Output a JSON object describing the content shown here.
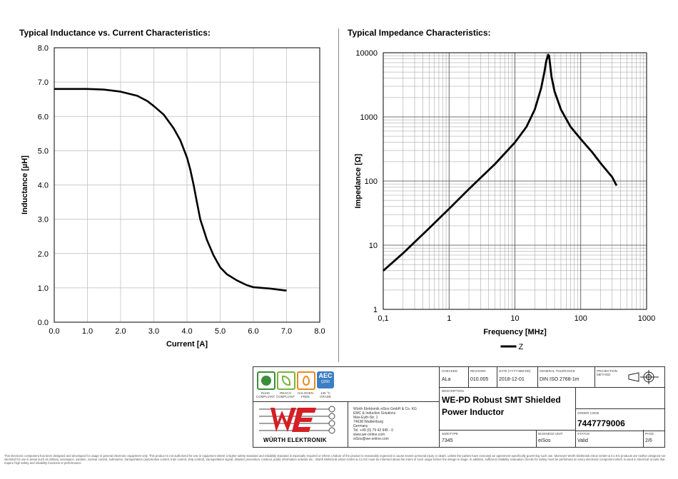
{
  "chart_data": [
    {
      "type": "line",
      "title": "Typical Inductance vs. Current Characteristics:",
      "xlabel": "Current [A]",
      "ylabel": "Inductance [µH]",
      "xlim": [
        0,
        8
      ],
      "ylim": [
        0,
        8
      ],
      "xticks": [
        "0.0",
        "1.0",
        "2.0",
        "3.0",
        "4.0",
        "5.0",
        "6.0",
        "7.0",
        "8.0"
      ],
      "yticks": [
        "0.0",
        "1.0",
        "2.0",
        "3.0",
        "4.0",
        "5.0",
        "6.0",
        "7.0",
        "8.0"
      ],
      "grid": true,
      "series": [
        {
          "name": "L",
          "x": [
            0,
            0.5,
            1.0,
            1.5,
            2.0,
            2.5,
            2.8,
            3.0,
            3.3,
            3.6,
            3.8,
            4.0,
            4.1,
            4.2,
            4.3,
            4.4,
            4.6,
            4.8,
            5.0,
            5.2,
            5.5,
            5.8,
            6.0,
            6.5,
            7.0
          ],
          "y": [
            6.8,
            6.8,
            6.8,
            6.78,
            6.72,
            6.6,
            6.45,
            6.3,
            6.05,
            5.65,
            5.3,
            4.8,
            4.45,
            4.0,
            3.5,
            3.0,
            2.4,
            1.95,
            1.6,
            1.4,
            1.22,
            1.08,
            1.02,
            0.98,
            0.92
          ]
        }
      ]
    },
    {
      "type": "line",
      "title": "Typical Impedance Characteristics:",
      "xlabel": "Frequency [MHz]",
      "ylabel": "Impedance [Ω]",
      "xscale": "log",
      "yscale": "log",
      "xlim": [
        0.1,
        1000
      ],
      "ylim": [
        1,
        10000
      ],
      "xticks": [
        "0,1",
        "1",
        "10",
        "100",
        "1000"
      ],
      "yticks": [
        "1",
        "10",
        "100",
        "1000",
        "10000"
      ],
      "grid": true,
      "legend": "Z",
      "series": [
        {
          "name": "Z",
          "x": [
            0.1,
            0.2,
            0.5,
            1,
            2,
            5,
            10,
            15,
            20,
            25,
            28,
            30,
            32,
            33,
            34,
            36,
            40,
            50,
            70,
            100,
            150,
            200,
            300,
            350
          ],
          "y": [
            4,
            7.5,
            18.5,
            37,
            75,
            185,
            400,
            700,
            1300,
            2800,
            5000,
            7500,
            9300,
            9000,
            7000,
            4200,
            2500,
            1300,
            700,
            450,
            280,
            190,
            115,
            85
          ]
        }
      ]
    }
  ],
  "titleblock": {
    "checked_label": "CHECKED",
    "checked": "ALa",
    "revision_label": "REVISION",
    "revision": "010.005",
    "date_label": "DATE (YYYY-MM-DD)",
    "date": "2018-12-01",
    "tolerance_label": "GENERAL TOLERANCE",
    "tolerance": "DIN ISO 2768-1m",
    "projection_label": "PROJECTION METHOD",
    "description_label": "DESCRIPTION",
    "description_line1": "WE-PD Robust SMT Shielded",
    "description_line2": "Power Inductor",
    "order_label": "ORDER CODE",
    "order_code": "7447779006",
    "size_label": "SIZE/TYPE",
    "size": "7345",
    "unit_label": "BUSINESS UNIT",
    "unit": "eiSos",
    "status_label": "STATUS",
    "status": "Valid",
    "page_label": "PAGE",
    "page": "2/6",
    "company_lines": [
      "Würth Elektronik eiSos GmbH & Co. KG",
      "EMC & Inductive Solutions",
      "Max-Eyth-Str. 1",
      "74638 Waldenburg",
      "Germany",
      "Tel. +49 (0) 79 42 945 - 0",
      "www.we-online.com",
      "eiSos@we-online.com"
    ],
    "logo_text": "WÜRTH ELEKTRONIK",
    "badges": [
      "RoHS COMPLIANT",
      "REACH COMPLIANT",
      "HALOGEN FREE",
      "125 °C GRADE"
    ],
    "aec_title": "AEC",
    "aec_sub": "Q200"
  },
  "disclaimer": "This electronic component has been designed and developed for usage in general electronic equipment only. This product is not authorized for use in equipment where a higher safety standard and reliability standard is especially required or where a failure of the product is reasonably expected to cause severe personal injury or death, unless the parties have executed an agreement specifically governing such use. Moreover Würth Elektronik eiSos GmbH & Co KG products are neither designed nor intended for use in areas such as military, aerospace, aviation, nuclear control, submarine, transportation (automotive control, train control, ship control), transportation signal, disaster prevention, medical, public information network etc.. Würth Elektronik eiSos GmbH & Co KG must be informed about the intent of such usage before the design-in stage. In addition, sufficient reliability evaluation checks for safety must be performed on every electronic component which is used in electrical circuits that require high safety and reliability functions or performance."
}
